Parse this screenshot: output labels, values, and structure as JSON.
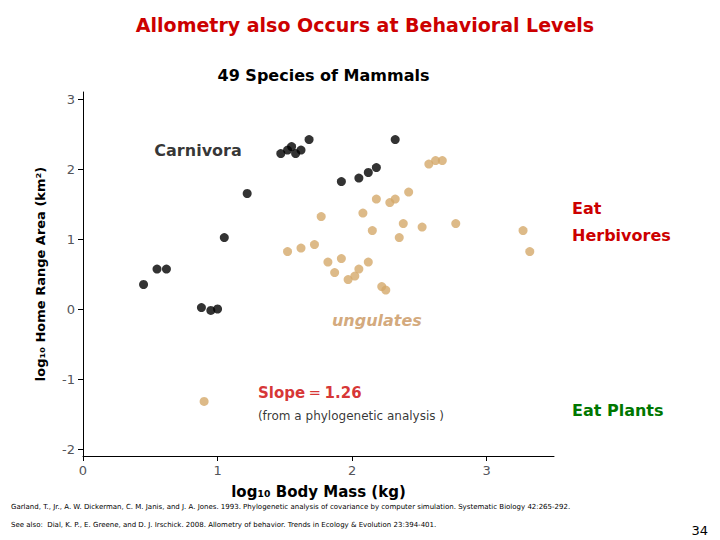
{
  "chart_data": {
    "type": "scatter",
    "title": "Allometry also Occurs at Behavioral Levels",
    "title_color": "#CC0000",
    "subtitle": "49 Species of Mammals",
    "subtitle_color": "#000000",
    "xlabel": "log₁₀ Body Mass (kg)",
    "ylabel": "log₁₀ Home Range Area (km²)",
    "xlim": [
      0,
      3.5
    ],
    "ylim": [
      -2.1,
      3.1
    ],
    "xticks": [
      0,
      1,
      2,
      3
    ],
    "yticks": [
      -2,
      -1,
      0,
      1,
      2,
      3
    ],
    "grid": false,
    "background_color": "#FFFFFF",
    "series": [
      {
        "color": "#000000",
        "x": [
          0.45,
          0.55,
          0.62,
          0.88,
          0.95,
          1.0,
          1.05,
          1.22,
          1.47,
          1.52,
          1.55,
          1.58,
          1.62,
          1.68,
          1.92,
          2.05,
          2.12,
          2.18,
          2.32
        ],
        "values": [
          0.35,
          0.57,
          0.57,
          0.02,
          -0.02,
          0.0,
          1.02,
          1.65,
          2.22,
          2.27,
          2.32,
          2.22,
          2.27,
          2.42,
          1.82,
          1.87,
          1.95,
          2.02,
          2.42
        ]
      },
      {
        "color": "#D4A96A",
        "x": [
          0.9,
          1.52,
          1.62,
          1.72,
          1.77,
          1.82,
          1.87,
          1.92,
          1.97,
          2.02,
          2.05,
          2.08,
          2.12,
          2.15,
          2.18,
          2.22,
          2.25,
          2.28,
          2.32,
          2.35,
          2.38,
          2.42,
          2.52,
          2.57,
          2.62,
          2.67,
          2.77,
          3.27,
          3.32
        ],
        "values": [
          -1.32,
          0.82,
          0.87,
          0.92,
          1.32,
          0.67,
          0.52,
          0.72,
          0.42,
          0.47,
          0.57,
          1.37,
          0.67,
          1.12,
          1.57,
          0.32,
          0.27,
          1.52,
          1.57,
          1.02,
          1.22,
          1.67,
          1.17,
          2.07,
          2.12,
          2.12,
          1.22,
          1.12,
          0.82
        ]
      }
    ],
    "annotations": [
      {
        "text": "Carnivora",
        "x": 0.53,
        "y": 2.15,
        "color": "#000000"
      },
      {
        "text": "ungulates",
        "x": 1.85,
        "y": -0.28,
        "color": "#C8935A"
      },
      {
        "text": "Slope ═ 1.26",
        "x": 1.3,
        "y": -1.3,
        "color": "#CC0000"
      },
      {
        "text": "(from a phylogenetic analysis )",
        "x": 1.3,
        "y": -1.62,
        "color": "#000000"
      },
      {
        "text": "Eat",
        "color": "#CC0000"
      },
      {
        "text": "Herbivores",
        "color": "#CC0000"
      },
      {
        "text": "Eat Plants",
        "color": "#007700"
      },
      {
        "text": "Garland, T., Jr., A. W. Dickerman, C. M. Janis, and J. A. Jones. 1993. Phylogenetic analysis of covariance by computer simulation. Systematic Biology 42:265-292.",
        "color": "#000000"
      },
      {
        "text": "See also:  Dial, K. P., E. Greene, and D. J. Irschick. 2008. Allometry of behavior. Trends in Ecology & Evolution 23:394-401.",
        "color": "#000000"
      },
      {
        "text": "34",
        "color": "#000000"
      }
    ]
  }
}
